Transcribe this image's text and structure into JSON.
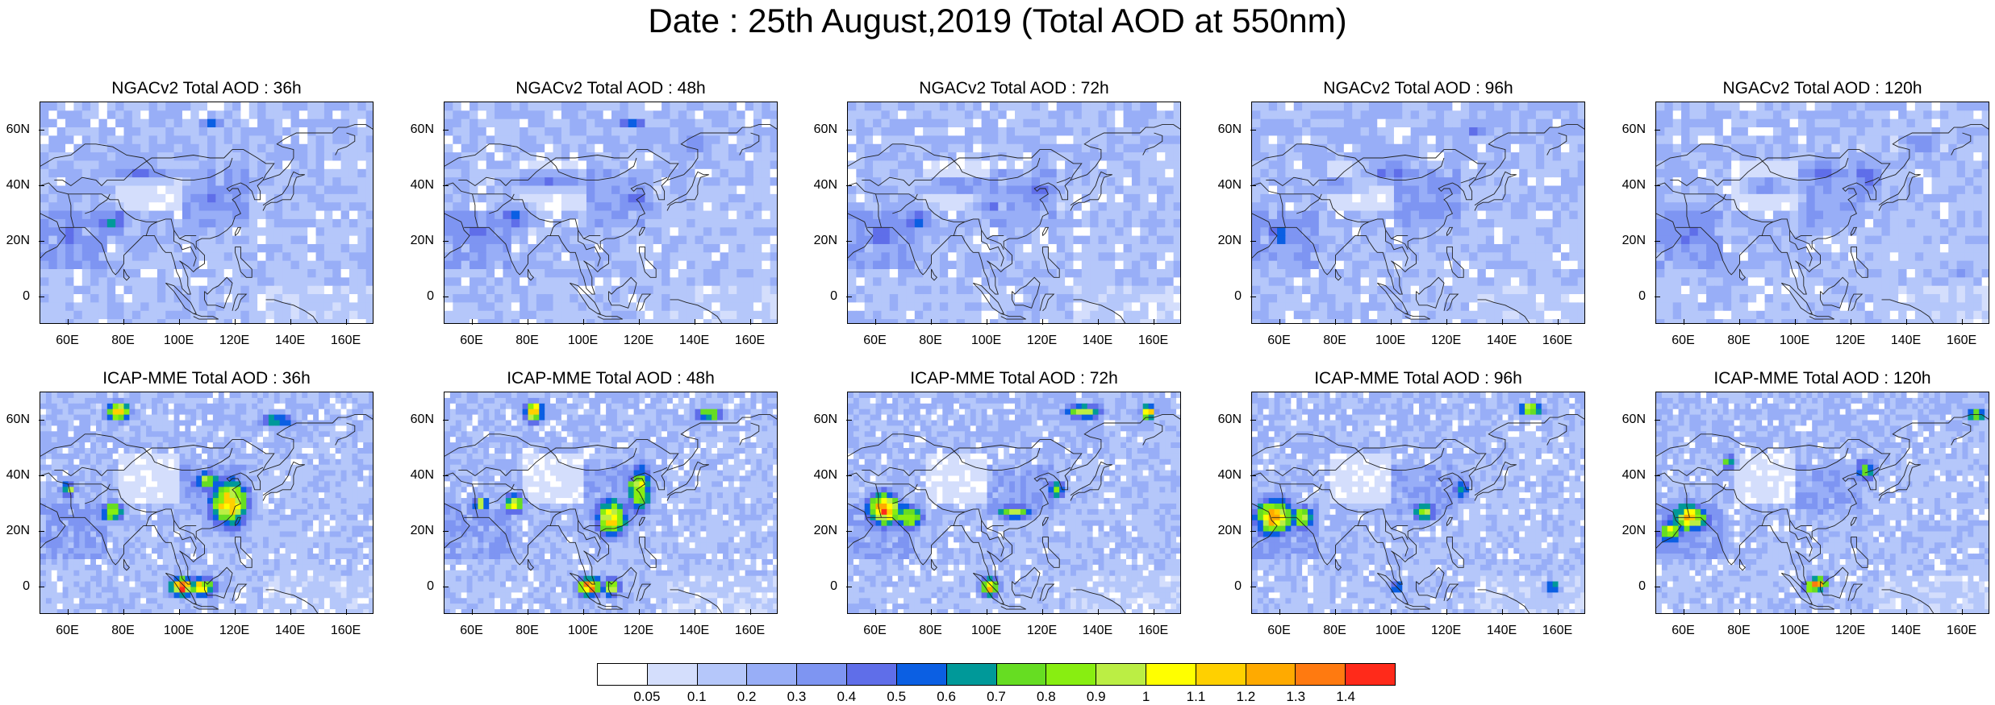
{
  "title": "Date : 25th August,2019 (Total AOD at 550nm)",
  "panels": [
    {
      "title": "NGACv2 Total AOD : 36h",
      "model": "NGACv2",
      "lead_hours": 36
    },
    {
      "title": "NGACv2 Total AOD : 48h",
      "model": "NGACv2",
      "lead_hours": 48
    },
    {
      "title": "NGACv2 Total AOD : 72h",
      "model": "NGACv2",
      "lead_hours": 72
    },
    {
      "title": "NGACv2 Total AOD : 96h",
      "model": "NGACv2",
      "lead_hours": 96
    },
    {
      "title": "NGACv2 Total AOD : 120h",
      "model": "NGACv2",
      "lead_hours": 120
    },
    {
      "title": "ICAP-MME Total AOD : 36h",
      "model": "ICAP-MME",
      "lead_hours": 36
    },
    {
      "title": "ICAP-MME Total AOD : 48h",
      "model": "ICAP-MME",
      "lead_hours": 48
    },
    {
      "title": "ICAP-MME Total AOD : 72h",
      "model": "ICAP-MME",
      "lead_hours": 72
    },
    {
      "title": "ICAP-MME Total AOD : 96h",
      "model": "ICAP-MME",
      "lead_hours": 96
    },
    {
      "title": "ICAP-MME Total AOD : 120h",
      "model": "ICAP-MME",
      "lead_hours": 120
    }
  ],
  "map_extent": {
    "lon": [
      50,
      170
    ],
    "lat": [
      -10,
      70
    ]
  },
  "lat_ticks": [
    {
      "value": 0,
      "label": "0"
    },
    {
      "value": 20,
      "label": "20N"
    },
    {
      "value": 40,
      "label": "40N"
    },
    {
      "value": 60,
      "label": "60N"
    }
  ],
  "lon_ticks": [
    {
      "value": 60,
      "label": "60E"
    },
    {
      "value": 80,
      "label": "80E"
    },
    {
      "value": 100,
      "label": "100E"
    },
    {
      "value": 120,
      "label": "120E"
    },
    {
      "value": 140,
      "label": "140E"
    },
    {
      "value": 160,
      "label": "160E"
    }
  ],
  "colorbar": {
    "colors": [
      "#ffffff",
      "#d4defc",
      "#b5c7fa",
      "#98aef7",
      "#7e95f2",
      "#5f6ee9",
      "#0b5fe3",
      "#009999",
      "#66dd22",
      "#88ee11",
      "#bbee44",
      "#ffff00",
      "#ffd000",
      "#ffaa00",
      "#ff7a10",
      "#ff2a1a"
    ],
    "labels": [
      "0.05",
      "0.1",
      "0.2",
      "0.3",
      "0.4",
      "0.5",
      "0.6",
      "0.7",
      "0.8",
      "0.9",
      "1",
      "1.1",
      "1.2",
      "1.3",
      "1.4"
    ]
  },
  "hotspots": {
    "ngac": [
      [
        [
          62,
          23,
          5,
          7,
          0.5
        ],
        [
          75,
          27,
          8,
          6,
          0.55
        ],
        [
          110,
          35,
          9,
          5,
          0.45
        ],
        [
          85,
          45,
          20,
          4,
          0.4
        ],
        [
          112,
          62,
          6,
          2,
          0.5
        ],
        [
          120,
          38,
          6,
          4,
          0.45
        ]
      ],
      [
        [
          62,
          23,
          5,
          7,
          0.5
        ],
        [
          75,
          28,
          7,
          6,
          0.55
        ],
        [
          118,
          35,
          8,
          5,
          0.45
        ],
        [
          88,
          42,
          20,
          4,
          0.4
        ],
        [
          118,
          62,
          5,
          2,
          0.7
        ],
        [
          140,
          55,
          8,
          5,
          0.4
        ]
      ],
      [
        [
          62,
          22,
          5,
          7,
          0.5
        ],
        [
          75,
          28,
          7,
          6,
          0.55
        ],
        [
          120,
          38,
          8,
          6,
          0.45
        ],
        [
          90,
          40,
          18,
          4,
          0.4
        ],
        [
          125,
          64,
          10,
          2,
          0.4
        ],
        [
          100,
          33,
          6,
          4,
          0.45
        ]
      ],
      [
        [
          60,
          22,
          6,
          7,
          0.5
        ],
        [
          100,
          45,
          12,
          5,
          0.45
        ],
        [
          120,
          40,
          8,
          6,
          0.4
        ],
        [
          80,
          40,
          10,
          4,
          0.4
        ],
        [
          130,
          60,
          10,
          4,
          0.4
        ],
        [
          112,
          30,
          6,
          4,
          0.4
        ]
      ],
      [
        [
          62,
          22,
          6,
          6,
          0.45
        ],
        [
          110,
          45,
          8,
          8,
          0.45
        ],
        [
          125,
          42,
          8,
          10,
          0.45
        ],
        [
          90,
          40,
          10,
          4,
          0.4
        ],
        [
          145,
          55,
          8,
          5,
          0.4
        ],
        [
          160,
          10,
          5,
          4,
          0.4
        ]
      ]
    ],
    "icap": [
      [
        [
          101,
          0,
          5,
          4,
          1.4
        ],
        [
          108,
          0,
          6,
          4,
          1.1
        ],
        [
          118,
          30,
          8,
          10,
          1.2
        ],
        [
          110,
          38,
          6,
          4,
          0.9
        ],
        [
          76,
          27,
          5,
          4,
          0.95
        ],
        [
          78,
          63,
          5,
          4,
          1.2
        ],
        [
          60,
          35,
          3,
          3,
          0.9
        ],
        [
          135,
          60,
          8,
          3,
          0.7
        ]
      ],
      [
        [
          102,
          0,
          5,
          4,
          1.4
        ],
        [
          110,
          0,
          4,
          4,
          1.0
        ],
        [
          110,
          25,
          7,
          8,
          1.1
        ],
        [
          120,
          35,
          5,
          10,
          1.0
        ],
        [
          75,
          30,
          4,
          4,
          1.1
        ],
        [
          63,
          30,
          3,
          3,
          1.0
        ],
        [
          82,
          63,
          4,
          4,
          1.3
        ],
        [
          145,
          62,
          6,
          3,
          0.9
        ]
      ],
      [
        [
          63,
          28,
          7,
          7,
          1.3
        ],
        [
          72,
          25,
          6,
          5,
          1.0
        ],
        [
          101,
          0,
          4,
          4,
          1.2
        ],
        [
          110,
          27,
          8,
          3,
          0.9
        ],
        [
          125,
          35,
          4,
          4,
          0.8
        ],
        [
          135,
          63,
          8,
          3,
          1.0
        ],
        [
          158,
          63,
          3,
          3,
          1.2
        ]
      ],
      [
        [
          58,
          25,
          8,
          8,
          1.2
        ],
        [
          68,
          25,
          5,
          5,
          1.0
        ],
        [
          112,
          27,
          5,
          4,
          0.9
        ],
        [
          125,
          35,
          4,
          5,
          0.7
        ],
        [
          150,
          64,
          5,
          3,
          1.0
        ],
        [
          158,
          0,
          3,
          3,
          0.8
        ],
        [
          102,
          0,
          3,
          2,
          0.8
        ]
      ],
      [
        [
          55,
          20,
          5,
          5,
          1.0
        ],
        [
          62,
          25,
          8,
          6,
          1.1
        ],
        [
          108,
          1,
          4,
          3,
          1.3
        ],
        [
          105,
          0,
          3,
          3,
          0.9
        ],
        [
          125,
          42,
          5,
          5,
          0.7
        ],
        [
          165,
          62,
          4,
          3,
          0.9
        ],
        [
          76,
          45,
          3,
          3,
          0.8
        ]
      ]
    ]
  }
}
